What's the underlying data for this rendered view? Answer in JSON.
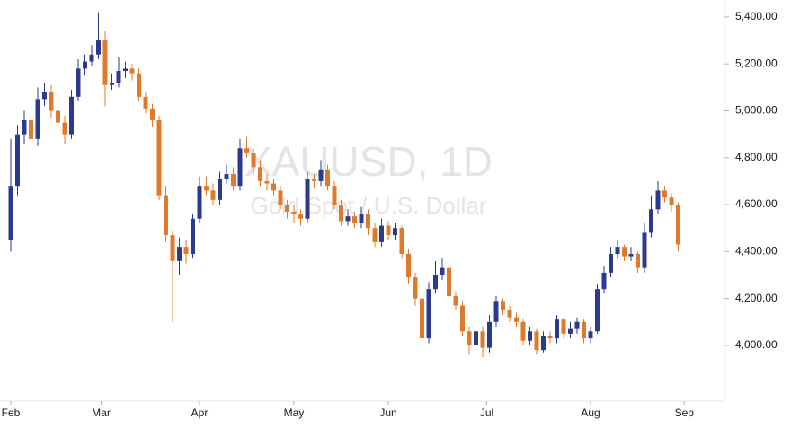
{
  "chart_data": {
    "type": "candlestick",
    "watermark": {
      "symbol": "XAUUSD, 1D",
      "description": "Gold Spot / U.S. Dollar"
    },
    "up_color": "#2b3a8c",
    "down_color": "#e07a2a",
    "ylim": [
      3820,
      5480
    ],
    "yticks": [
      {
        "value": 4000,
        "label": "4,000.00"
      },
      {
        "value": 4200,
        "label": "4,200.00"
      },
      {
        "value": 4400,
        "label": "4,400.00"
      },
      {
        "value": 4600,
        "label": "4,600.00"
      },
      {
        "value": 4800,
        "label": "4,800.00"
      },
      {
        "value": 5000,
        "label": "5,000.00"
      },
      {
        "value": 5200,
        "label": "5,200.00"
      },
      {
        "value": 5400,
        "label": "5,400.00"
      }
    ],
    "xticks": [
      {
        "value": 0,
        "label": "Feb"
      },
      {
        "value": 13.4,
        "label": "Mar"
      },
      {
        "value": 28,
        "label": "Apr"
      },
      {
        "value": 42,
        "label": "May"
      },
      {
        "value": 56,
        "label": "Jun"
      },
      {
        "value": 70.6,
        "label": "Jul"
      },
      {
        "value": 86,
        "label": "Aug"
      },
      {
        "value": 99.9,
        "label": "Sep"
      }
    ],
    "open": [
      4450,
      4680,
      4900,
      4960,
      4880,
      5050,
      5080,
      5000,
      4950,
      4900,
      5060,
      5180,
      5210,
      5240,
      5300,
      5110,
      5120,
      5170,
      5180,
      5160,
      5060,
      5010,
      4960,
      4640,
      4470,
      4360,
      4420,
      4390,
      4540,
      4680,
      4660,
      4620,
      4710,
      4730,
      4680,
      4840,
      4820,
      4760,
      4700,
      4690,
      4660,
      4600,
      4570,
      4560,
      4540,
      4710,
      4700,
      4750,
      4680,
      4600,
      4530,
      4550,
      4520,
      4560,
      4500,
      4440,
      4510,
      4470,
      4500,
      4390,
      4290,
      4200,
      4030,
      4240,
      4300,
      4330,
      4210,
      4170,
      4060,
      4000,
      4060,
      3990,
      4100,
      4190,
      4150,
      4120,
      4100,
      4020,
      4060,
      3980,
      4040,
      4030,
      4110,
      4050,
      4070,
      4100,
      4030,
      4060,
      4240,
      4310,
      4390,
      4420,
      4380,
      4390,
      4330,
      4480,
      4580,
      4660,
      4630,
      4600
    ],
    "high": [
      4880,
      4940,
      5000,
      4990,
      5100,
      5120,
      5110,
      5030,
      4980,
      5090,
      5220,
      5240,
      5280,
      5420,
      5340,
      5160,
      5230,
      5210,
      5200,
      5180,
      5080,
      5030,
      4980,
      4680,
      4490,
      4460,
      4450,
      4560,
      4720,
      4720,
      4690,
      4740,
      4770,
      4760,
      4880,
      4890,
      4840,
      4790,
      4730,
      4710,
      4680,
      4620,
      4600,
      4580,
      4740,
      4730,
      4790,
      4770,
      4700,
      4620,
      4580,
      4570,
      4590,
      4580,
      4520,
      4540,
      4530,
      4520,
      4510,
      4410,
      4310,
      4220,
      4270,
      4360,
      4370,
      4350,
      4230,
      4190,
      4080,
      4090,
      4080,
      4130,
      4210,
      4200,
      4170,
      4140,
      4110,
      4080,
      4070,
      4060,
      4060,
      4130,
      4120,
      4100,
      4120,
      4110,
      4080,
      4260,
      4340,
      4420,
      4450,
      4430,
      4420,
      4400,
      4520,
      4640,
      4700,
      4680,
      4650,
      4610
    ],
    "low": [
      4400,
      4640,
      4860,
      4840,
      4850,
      5020,
      4970,
      4900,
      4860,
      4880,
      5040,
      5150,
      5190,
      5220,
      5020,
      5090,
      5100,
      5140,
      5130,
      5040,
      4990,
      4930,
      4620,
      4440,
      4100,
      4300,
      4350,
      4370,
      4520,
      4640,
      4600,
      4600,
      4690,
      4660,
      4660,
      4800,
      4730,
      4680,
      4660,
      4640,
      4580,
      4540,
      4520,
      4510,
      4520,
      4670,
      4680,
      4660,
      4580,
      4510,
      4510,
      4500,
      4500,
      4470,
      4420,
      4420,
      4450,
      4450,
      4370,
      4260,
      4170,
      4010,
      4010,
      4220,
      4280,
      4190,
      4150,
      4040,
      3960,
      3980,
      3950,
      3970,
      4080,
      4130,
      4100,
      4080,
      4000,
      4000,
      3960,
      3970,
      4010,
      4010,
      4030,
      4030,
      4050,
      4010,
      4010,
      4050,
      4220,
      4290,
      4370,
      4360,
      4360,
      4310,
      4310,
      4460,
      4560,
      4610,
      4570,
      4400
    ],
    "close": [
      4680,
      4900,
      4960,
      4880,
      5050,
      5080,
      5000,
      4950,
      4900,
      5060,
      5180,
      5210,
      5240,
      5300,
      5110,
      5120,
      5170,
      5180,
      5160,
      5060,
      5010,
      4960,
      4640,
      4470,
      4360,
      4420,
      4390,
      4540,
      4680,
      4660,
      4620,
      4710,
      4730,
      4680,
      4840,
      4820,
      4760,
      4700,
      4690,
      4660,
      4600,
      4570,
      4560,
      4540,
      4710,
      4700,
      4750,
      4680,
      4600,
      4530,
      4550,
      4520,
      4560,
      4500,
      4440,
      4510,
      4470,
      4500,
      4390,
      4290,
      4200,
      4030,
      4240,
      4300,
      4330,
      4210,
      4170,
      4060,
      4000,
      4060,
      3990,
      4100,
      4190,
      4150,
      4120,
      4100,
      4020,
      4060,
      3980,
      4040,
      4030,
      4110,
      4050,
      4070,
      4100,
      4030,
      4060,
      4240,
      4310,
      4390,
      4420,
      4380,
      4390,
      4330,
      4480,
      4580,
      4660,
      4630,
      4600,
      4430
    ]
  }
}
